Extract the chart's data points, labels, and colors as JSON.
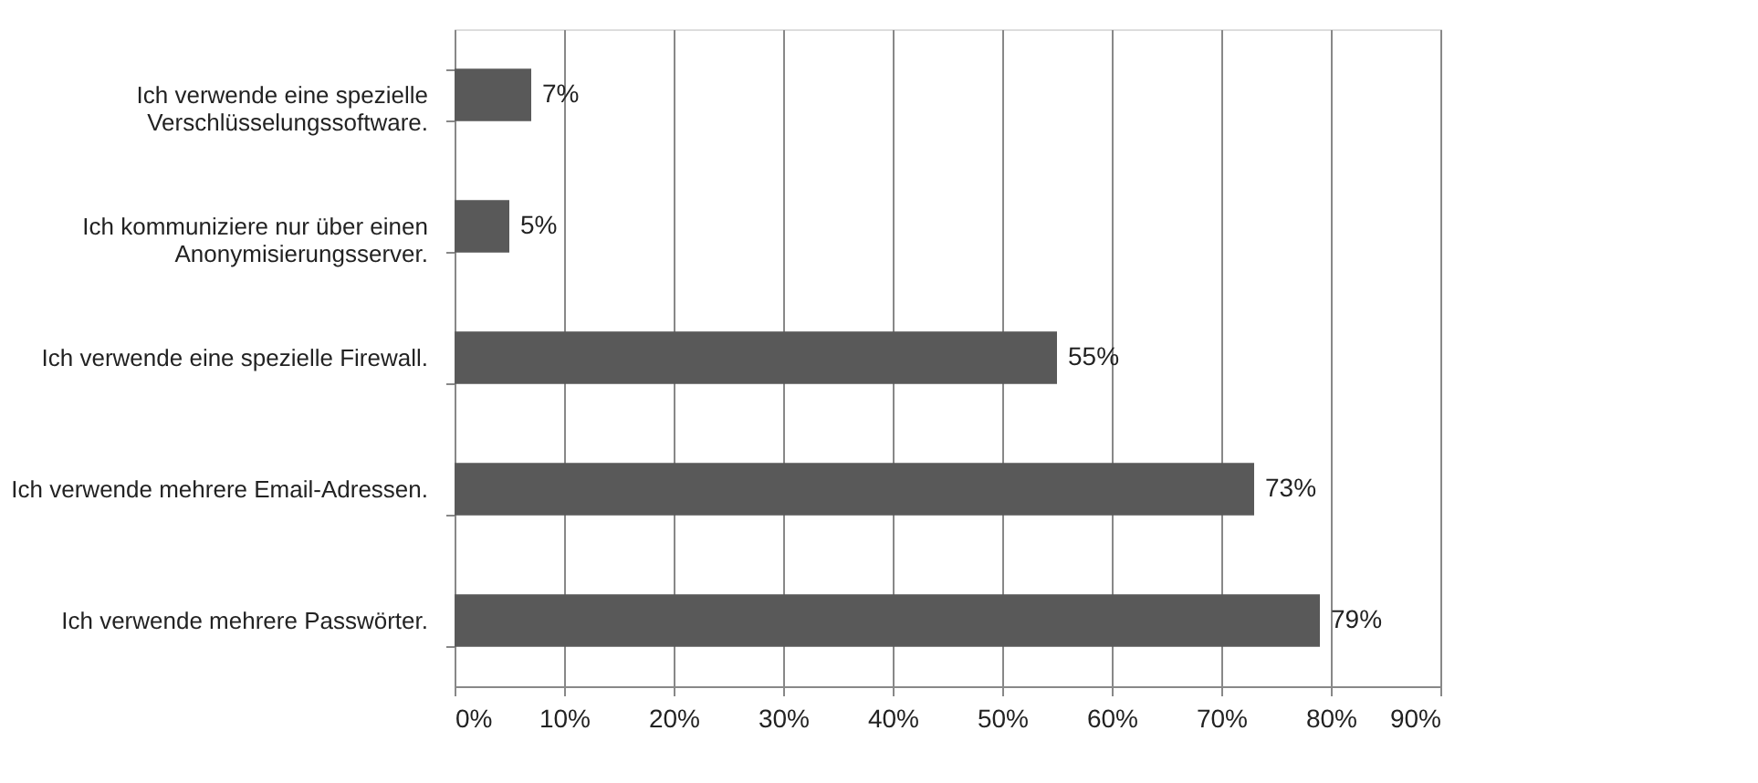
{
  "chart_data": {
    "type": "bar",
    "orientation": "horizontal",
    "categories": [
      "Ich verwende eine spezielle\nVerschlüsselungssoftware.",
      "Ich kommuniziere nur über einen\nAnonymisierungsserver.",
      "Ich verwende eine spezielle Firewall.",
      "Ich verwende mehrere Email-Adressen.",
      "Ich verwende mehrere Passwörter."
    ],
    "values": [
      7,
      5,
      55,
      73,
      79
    ],
    "value_labels": [
      "7%",
      "5%",
      "55%",
      "73%",
      "79%"
    ],
    "color": "#595959",
    "xlim": [
      0,
      90
    ],
    "xticks": [
      {
        "value": 0,
        "label": "0%"
      },
      {
        "value": 10,
        "label": "10%"
      },
      {
        "value": 20,
        "label": "20%"
      },
      {
        "value": 30,
        "label": "30%"
      },
      {
        "value": 40,
        "label": "40%"
      },
      {
        "value": 50,
        "label": "50%"
      },
      {
        "value": 60,
        "label": "60%"
      },
      {
        "value": 70,
        "label": "70%"
      },
      {
        "value": 80,
        "label": "80%"
      },
      {
        "value": 90,
        "label": "90%"
      }
    ],
    "grid": "x"
  }
}
